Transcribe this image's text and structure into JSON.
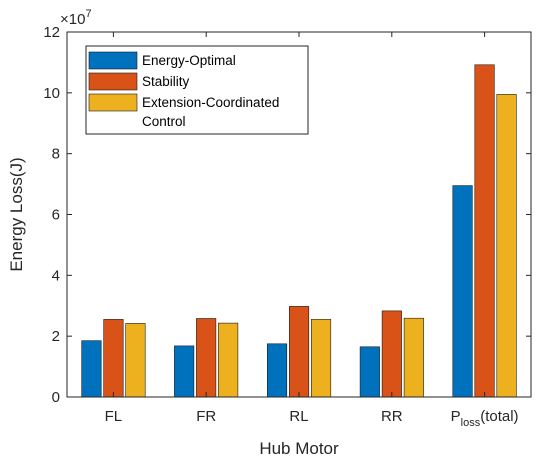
{
  "chart_data": {
    "type": "bar",
    "categories": [
      "FL",
      "FR",
      "RL",
      "RR",
      "Ploss(total)"
    ],
    "category_label_parts": {
      "4": {
        "main": "P",
        "sub": "loss",
        "tail": "(total)"
      }
    },
    "series": [
      {
        "name": "Energy-Optimal",
        "name_lines": [
          "Energy-Optimal"
        ],
        "color": "#0072BD",
        "values": [
          18500000.0,
          16800000.0,
          17500000.0,
          16500000.0,
          69500000.0
        ]
      },
      {
        "name": "Stability",
        "name_lines": [
          "Stability"
        ],
        "color": "#D95319",
        "values": [
          25500000.0,
          25800000.0,
          29800000.0,
          28300000.0,
          109200000.0
        ]
      },
      {
        "name": "Extension-Coordinated Control",
        "name_lines": [
          "Extension-Coordinated",
          "Control"
        ],
        "color": "#EDB120",
        "values": [
          24200000.0,
          24300000.0,
          25500000.0,
          25900000.0,
          99500000.0
        ]
      }
    ],
    "xlabel": "Hub Motor",
    "ylabel": "Energy Loss(J)",
    "ylim": [
      0,
      12
    ],
    "yticks": [
      "0",
      "2",
      "4",
      "6",
      "8",
      "10",
      "12"
    ],
    "y_exponent": {
      "base": "×10",
      "power": "7"
    },
    "y_scale": 10000000,
    "grid": false,
    "legend_position": "top-left"
  }
}
